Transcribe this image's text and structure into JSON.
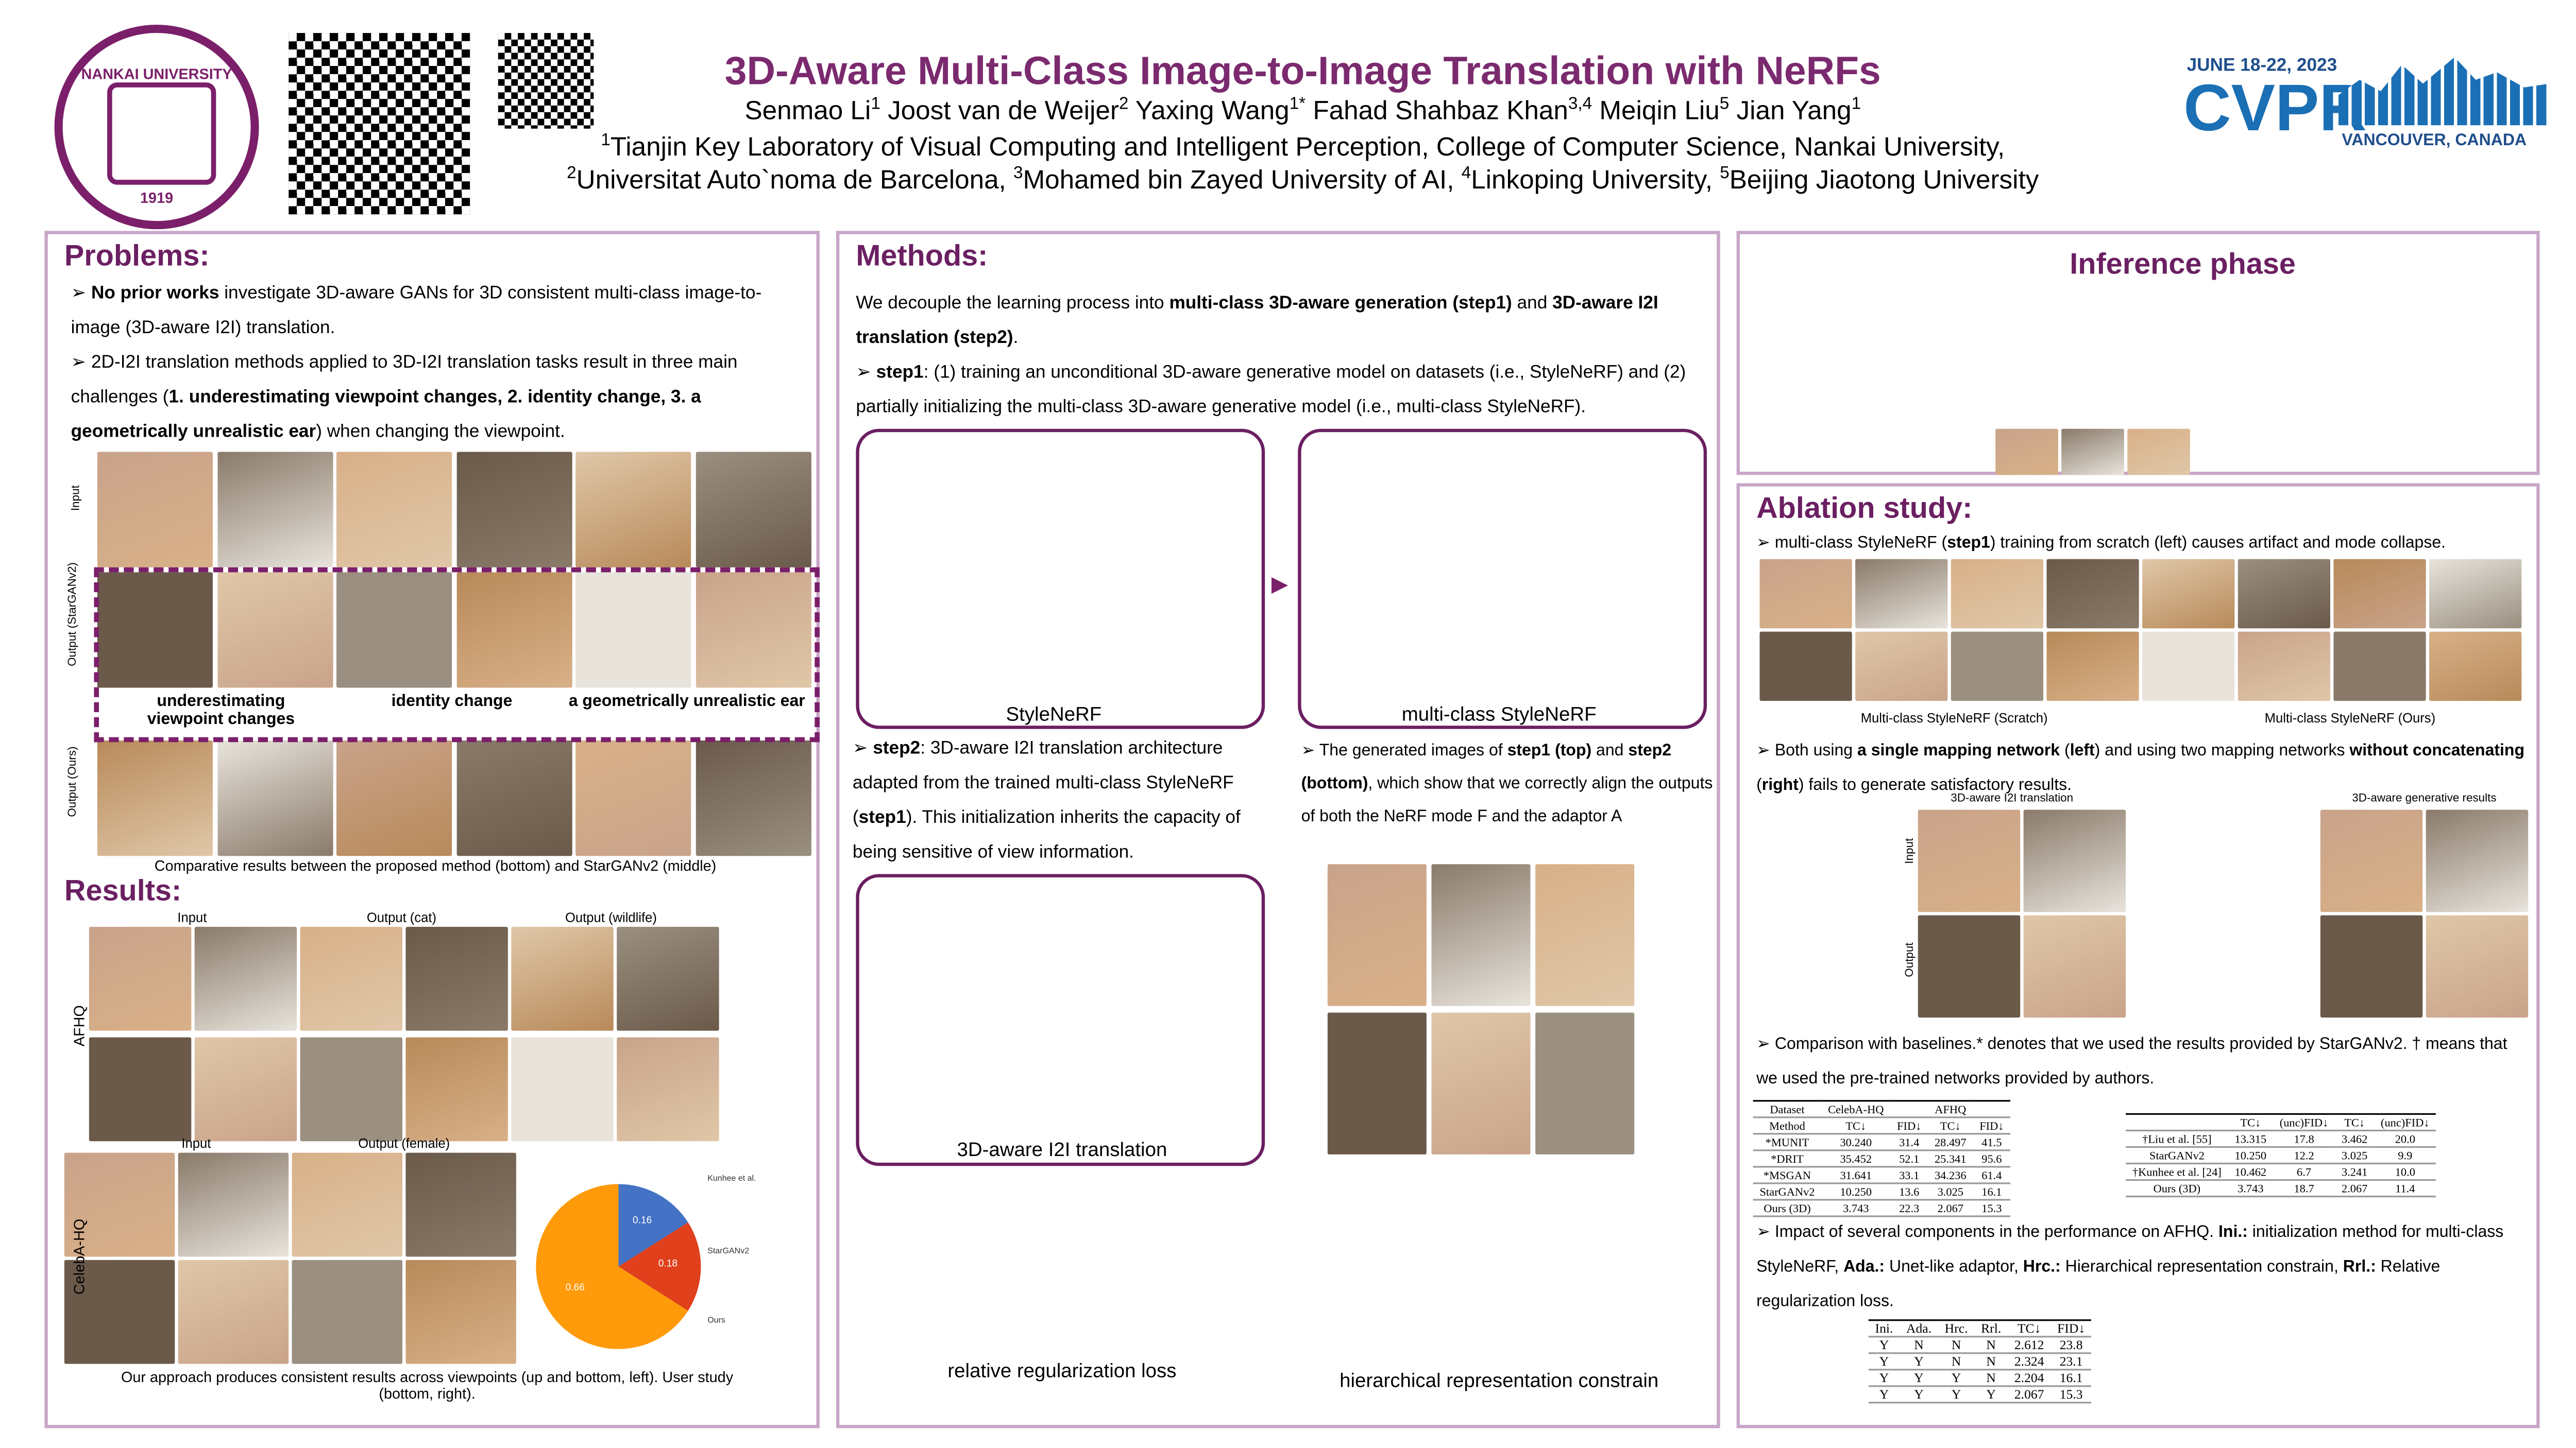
{
  "header": {
    "university": "NANKAI UNIVERSITY",
    "university_year": "1919",
    "title": "3D-Aware Multi-Class Image-to-Image Translation with NeRFs",
    "authors": [
      {
        "t": "Senmao Li"
      },
      {
        "t": "1",
        "sup": true
      },
      {
        "t": " Joost van de Weijer"
      },
      {
        "t": "2",
        "sup": true
      },
      {
        "t": " Yaxing Wang"
      },
      {
        "t": "1*",
        "sup": true
      },
      {
        "t": " Fahad Shahbaz Khan"
      },
      {
        "t": "3,4",
        "sup": true
      },
      {
        "t": " Meiqin Liu"
      },
      {
        "t": "5",
        "sup": true
      },
      {
        "t": " Jian Yang"
      },
      {
        "t": "1",
        "sup": true
      }
    ],
    "affiliations_1": [
      {
        "t": "1",
        "sup": true
      },
      {
        "t": "Tianjin Key Laboratory of Visual Computing and Intelligent Perception, College of Computer Science, Nankai University,"
      }
    ],
    "affiliations_2": [
      {
        "t": "2",
        "sup": true
      },
      {
        "t": "Universitat Auto`noma de Barcelona, "
      },
      {
        "t": "3",
        "sup": true
      },
      {
        "t": "Mohamed bin Zayed University of AI, "
      },
      {
        "t": "4",
        "sup": true
      },
      {
        "t": "Linkoping University, "
      },
      {
        "t": "5",
        "sup": true
      },
      {
        "t": "Beijing Jiaotong University"
      }
    ],
    "conference_dates": "JUNE 18-22, 2023",
    "conference": "CVPR",
    "conference_location": "VANCOUVER, CANADA"
  },
  "problems": {
    "heading": "Problems:",
    "p1": [
      {
        "t": "No prior works",
        "b": true
      },
      {
        "t": " investigate 3D-aware GANs for 3D consistent multi-class image-to-image (3D-aware I2I) translation."
      }
    ],
    "p2": [
      {
        "t": "2D-I2I translation methods applied to 3D-I2I translation tasks result in three main challenges ("
      },
      {
        "t": "1. underestimating viewpoint changes, 2. identity change, 3. a geometrically unrealistic ear",
        "b": true
      },
      {
        "t": ") when changing the viewpoint."
      }
    ],
    "row_labels": [
      "Input",
      "Output (StarGANv2)",
      "Output (Ours)"
    ],
    "challenges": [
      "underestimating viewpoint changes",
      "identity change",
      "a geometrically unrealistic ear"
    ],
    "caption": "Comparative results between the proposed method (bottom) and StarGANv2 (middle)"
  },
  "results": {
    "heading": "Results:",
    "afhq_columns": [
      "Input",
      "Output (cat)",
      "Output (wildlife)"
    ],
    "afhq_label": "AFHQ",
    "celeba_columns": [
      "Input",
      "Output (female)"
    ],
    "celeba_label": "CelebA-HQ",
    "caption": "Our approach produces consistent results across viewpoints (up and bottom, left). User study (bottom, right).",
    "chart_data": {
      "type": "pie",
      "categories": [
        "Kunhee et al.",
        "StarGANv2",
        "Ours"
      ],
      "values": [
        0.16,
        0.18,
        0.66
      ],
      "colors": [
        "#4472c4",
        "#e0401c",
        "#ff9a0a"
      ]
    }
  },
  "methods": {
    "heading": "Methods:",
    "intro": [
      {
        "t": "We decouple the learning process into "
      },
      {
        "t": "multi-class 3D-aware generation (step1)",
        "b": true
      },
      {
        "t": " and "
      },
      {
        "t": "3D-aware I2I translation (step2)",
        "b": true
      },
      {
        "t": "."
      }
    ],
    "step1": [
      {
        "t": "step1",
        "b": true
      },
      {
        "t": ": (1) training an unconditional 3D-aware generative model on datasets (i.e., StyleNeRF) and (2) partially initializing the multi-class 3D-aware generative model (i.e., multi-class StyleNeRF)."
      }
    ],
    "diagram_captions": [
      "StyleNeRF",
      "multi-class StyleNeRF"
    ],
    "step2": [
      {
        "t": "step2",
        "b": true
      },
      {
        "t": ": 3D-aware I2I translation architecture adapted from the trained multi-class StyleNeRF ("
      },
      {
        "t": "step1",
        "b": true
      },
      {
        "t": "). This initialization inherits the capacity of being sensitive of view information."
      }
    ],
    "generated": [
      {
        "t": "The generated images of "
      },
      {
        "t": "step1 (top)",
        "b": true
      },
      {
        "t": " and "
      },
      {
        "t": "step2 (bottom)",
        "b": true
      },
      {
        "t": ", which show that we correctly align the outputs of both the NeRF mode F and the adaptor A"
      }
    ],
    "i2i_caption": "3D-aware I2I translation",
    "rrl_caption": "relative regularization loss",
    "hrc_caption": "hierarchical representation constrain"
  },
  "inference": {
    "heading": "Inference phase"
  },
  "ablation": {
    "heading": "Ablation study:",
    "a1": [
      {
        "t": "multi-class StyleNeRF ("
      },
      {
        "t": "step1",
        "b": true
      },
      {
        "t": ") training from scratch (left) causes artifact and mode collapse."
      }
    ],
    "captions": [
      "Multi-class StyleNeRF (Scratch)",
      "Multi-class StyleNeRF (Ours)"
    ],
    "a2": [
      {
        "t": "Both using "
      },
      {
        "t": "a single mapping network",
        "b": true
      },
      {
        "t": " ("
      },
      {
        "t": "left",
        "b": true
      },
      {
        "t": ") and using two mapping networks "
      },
      {
        "t": "without concatenating",
        "b": true
      },
      {
        "t": " ("
      },
      {
        "t": "right",
        "b": true
      },
      {
        "t": ") fails to generate satisfactory results."
      }
    ],
    "i2i_label": "3D-aware I2I translation",
    "gen_label": "3D-aware generative results",
    "input_label": "Input",
    "output_label": "Output",
    "a3": [
      {
        "t": "Comparison with baselines.* denotes that we used the results provided by StarGANv2. † means that we used the pre-trained networks provided by authors."
      }
    ],
    "table1": {
      "rows": [
        [
          "Dataset",
          "CelebA-HQ",
          "",
          "AFHQ",
          ""
        ],
        [
          "Method",
          "TC↓",
          "FID↓",
          "TC↓",
          "FID↓"
        ],
        [
          "*MUNIT",
          "30.240",
          "31.4",
          "28.497",
          "41.5"
        ],
        [
          "*DRIT",
          "35.452",
          "52.1",
          "25.341",
          "95.6"
        ],
        [
          "*MSGAN",
          "31.641",
          "33.1",
          "34.236",
          "61.4"
        ],
        [
          "StarGANv2",
          "10.250",
          "13.6",
          "3.025",
          "16.1"
        ],
        [
          "Ours (3D)",
          "3.743",
          "22.3",
          "2.067",
          "15.3"
        ]
      ]
    },
    "table2": {
      "rows": [
        [
          "",
          "TC↓",
          "(unc)FID↓",
          "TC↓",
          "(unc)FID↓"
        ],
        [
          "†Liu et al. [55]",
          "13.315",
          "17.8",
          "3.462",
          "20.0"
        ],
        [
          "StarGANv2",
          "10.250",
          "12.2",
          "3.025",
          "9.9"
        ],
        [
          "†Kunhee et al. [24]",
          "10.462",
          "6.7",
          "3.241",
          "10.0"
        ],
        [
          "Ours (3D)",
          "3.743",
          "18.7",
          "2.067",
          "11.4"
        ]
      ]
    },
    "a4": [
      {
        "t": "Impact of several components in the performance on AFHQ. "
      },
      {
        "t": "Ini.:",
        "b": true
      },
      {
        "t": " initialization method for multi-class StyleNeRF, "
      },
      {
        "t": "Ada.:",
        "b": true
      },
      {
        "t": " Unet-like adaptor, "
      },
      {
        "t": "Hrc.:",
        "b": true
      },
      {
        "t": " Hierarchical representation constrain, "
      },
      {
        "t": "Rrl.:",
        "b": true
      },
      {
        "t": " Relative regularization loss."
      }
    ],
    "table3": {
      "rows": [
        [
          "Ini.",
          "Ada.",
          "Hrc.",
          "Rrl.",
          "TC↓",
          "FID↓"
        ],
        [
          "Y",
          "N",
          "N",
          "N",
          "2.612",
          "23.8"
        ],
        [
          "Y",
          "Y",
          "N",
          "N",
          "2.324",
          "23.1"
        ],
        [
          "Y",
          "Y",
          "Y",
          "N",
          "2.204",
          "16.1"
        ],
        [
          "Y",
          "Y",
          "Y",
          "Y",
          "2.067",
          "15.3"
        ]
      ]
    }
  }
}
